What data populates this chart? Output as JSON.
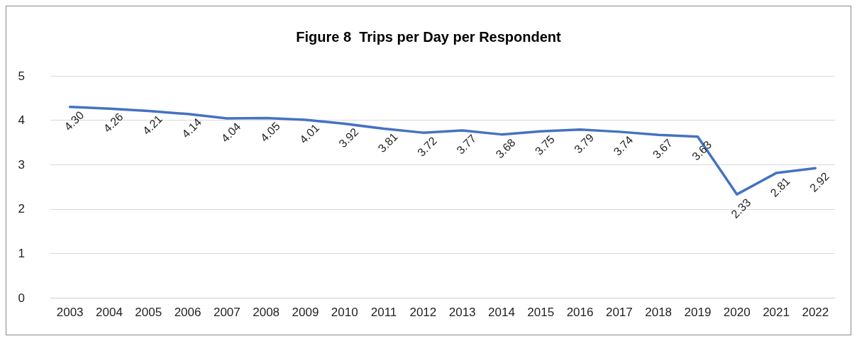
{
  "chart_data": {
    "type": "line",
    "title": "Figure 8  Trips per Day per Respondent",
    "categories": [
      "2003",
      "2004",
      "2005",
      "2006",
      "2007",
      "2008",
      "2009",
      "2010",
      "2011",
      "2012",
      "2013",
      "2014",
      "2015",
      "2016",
      "2017",
      "2018",
      "2019",
      "2020",
      "2021",
      "2022"
    ],
    "series": [
      {
        "color": "#4472c4",
        "values": [
          4.3,
          4.26,
          4.21,
          4.14,
          4.04,
          4.05,
          4.01,
          3.92,
          3.81,
          3.72,
          3.77,
          3.68,
          3.75,
          3.79,
          3.74,
          3.67,
          3.63,
          2.33,
          2.81,
          2.92
        ]
      }
    ],
    "ylim": [
      0,
      5
    ],
    "yticks": [
      0,
      1,
      2,
      3,
      4,
      5
    ],
    "grid": "y",
    "marker": "none",
    "line_style": "solid",
    "value_labels": [
      "4.30",
      "4.26",
      "4.21",
      "4.14",
      "4.04",
      "4.05",
      "4.01",
      "3.92",
      "3.81",
      "3.72",
      "3.77",
      "3.68",
      "3.75",
      "3.79",
      "3.74",
      "3.67",
      "3.63",
      "2.33",
      "2.81",
      "2.92"
    ]
  }
}
